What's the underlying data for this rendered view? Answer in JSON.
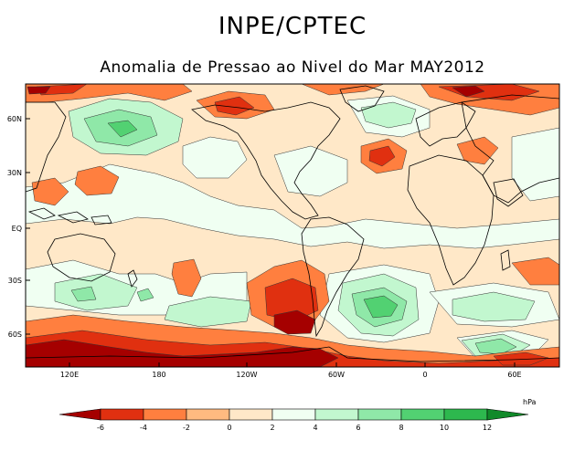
{
  "header": {
    "title": "INPE/CPTEC",
    "subtitle": "Anomalia de Pressao ao Nivel do Mar MAY2012"
  },
  "map": {
    "lat_labels": [
      "60N",
      "30N",
      "EQ",
      "30S",
      "60S"
    ],
    "lon_labels": [
      "120E",
      "180",
      "120W",
      "60W",
      "0",
      "60E"
    ]
  },
  "legend": {
    "unit": "hPa",
    "ticks": [
      "-6",
      "-4",
      "-2",
      "0",
      "2",
      "4",
      "6",
      "8",
      "10",
      "12"
    ],
    "colors": [
      "#a50000",
      "#e03010",
      "#ff7f3f",
      "#ffba80",
      "#ffe8c8",
      "#f0fff2",
      "#c2f7cf",
      "#8fe8a8",
      "#52d172",
      "#2db84e",
      "#118a2a"
    ]
  }
}
